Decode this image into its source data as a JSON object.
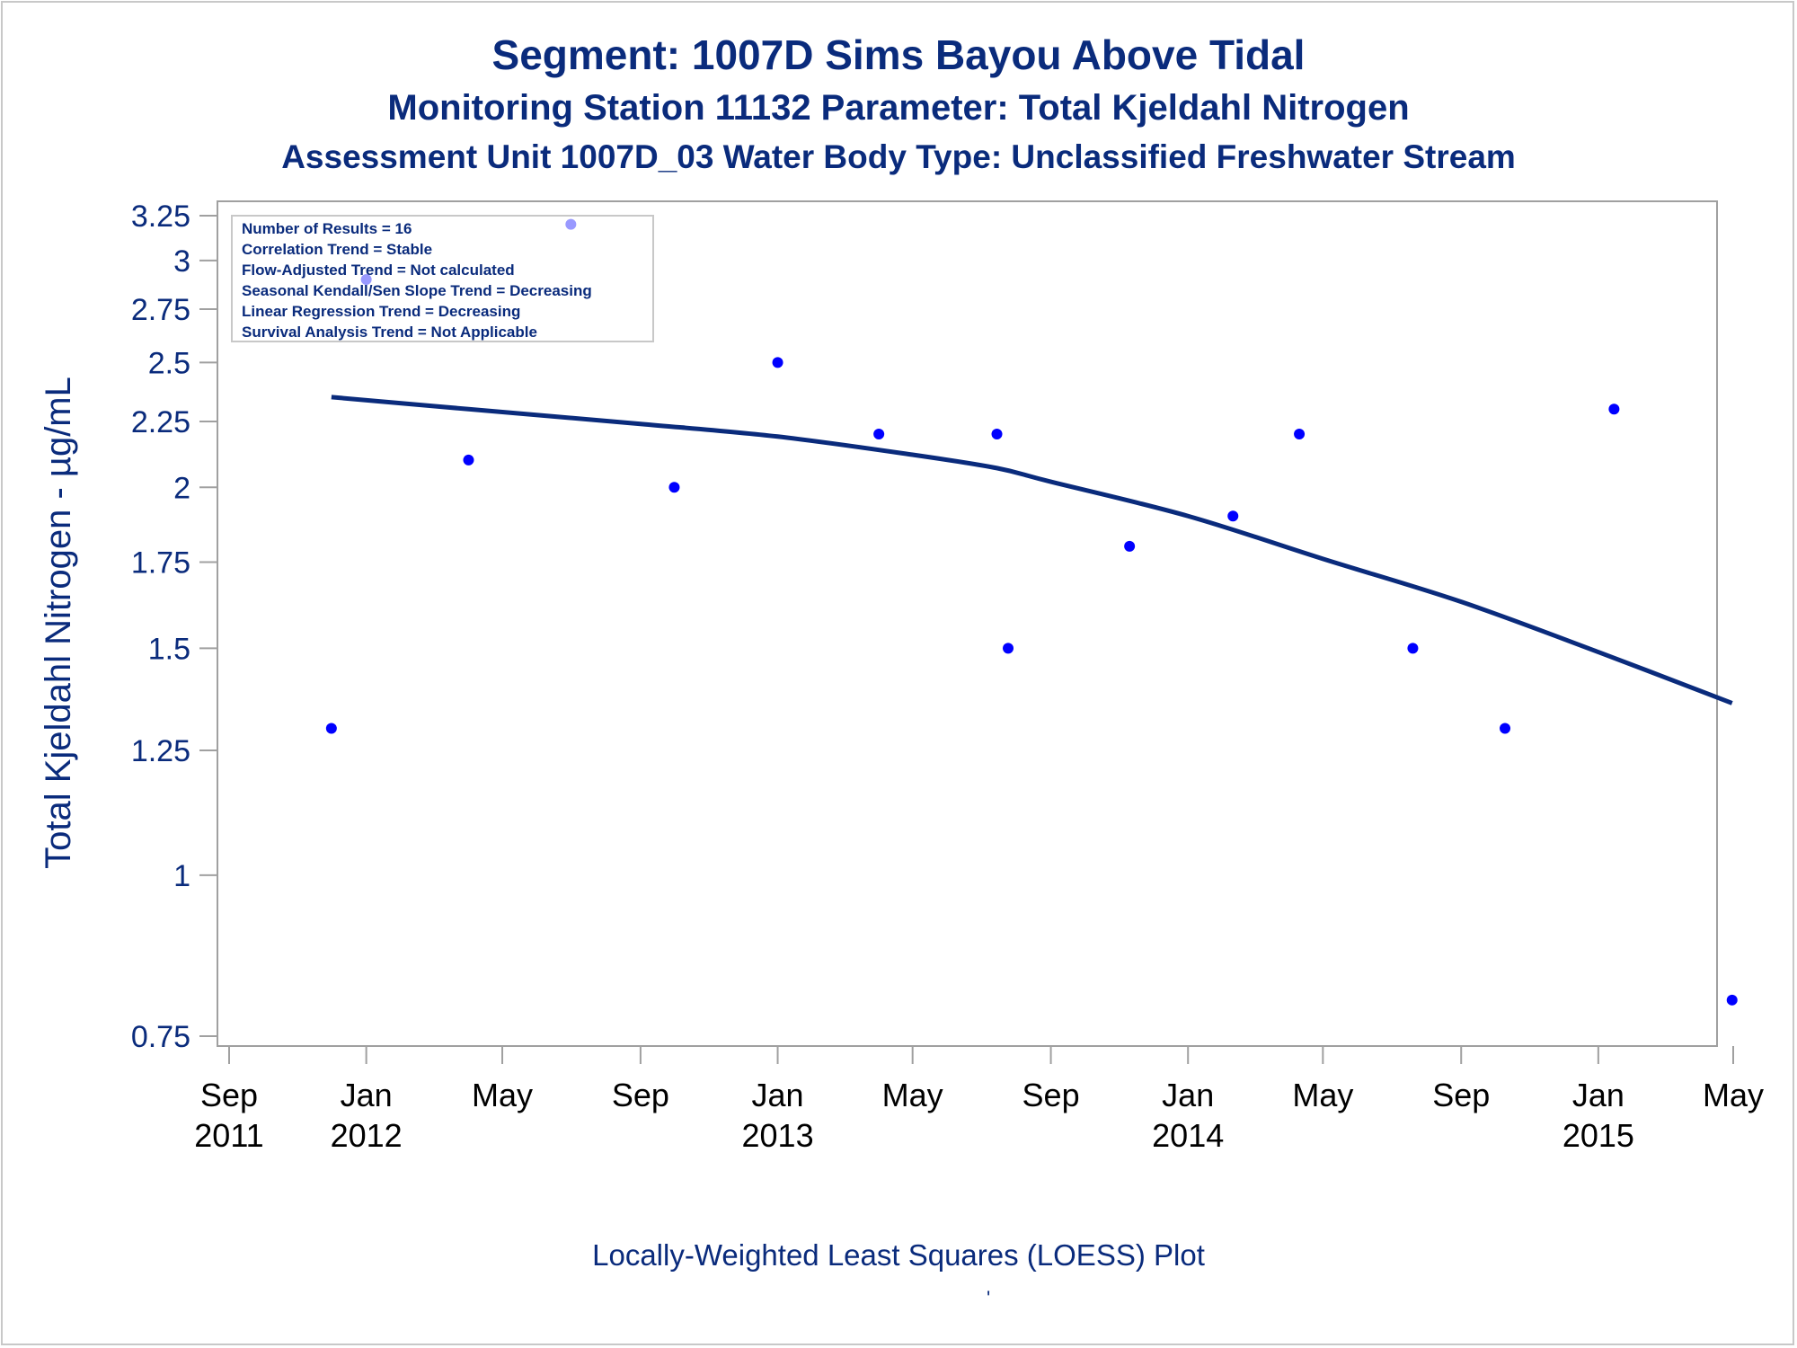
{
  "title": "Segment: 1007D  Sims Bayou Above Tidal",
  "subtitle1": "Monitoring Station 11132 Parameter: Total Kjeldahl Nitrogen",
  "subtitle2": "Assessment Unit 1007D_03   Water Body Type: Unclassified Freshwater Stream",
  "footnote": "Locally-Weighted Least Squares (LOESS) Plot",
  "footnote_mark": "'",
  "colors": {
    "text": "#0a2b7c",
    "points": "#0000ff",
    "curve": "#0a2b7c",
    "axis": "#a0a0a0"
  },
  "chart_data": {
    "type": "scatter",
    "ylabel": "Total Kjeldahl Nitrogen -  µg/mL",
    "yscale": "log",
    "ylim": [
      0.75,
      3.25
    ],
    "yticks": [
      0.75,
      1,
      1.25,
      1.5,
      1.75,
      2,
      2.25,
      2.5,
      2.75,
      3,
      3.25
    ],
    "xlim": [
      "2011-09-01",
      "2015-05-01"
    ],
    "xticks": [
      {
        "date": "2011-09-01",
        "month": "Sep",
        "year": "2011"
      },
      {
        "date": "2012-01-01",
        "month": "Jan",
        "year": "2012"
      },
      {
        "date": "2012-05-01",
        "month": "May",
        "year": ""
      },
      {
        "date": "2012-09-01",
        "month": "Sep",
        "year": ""
      },
      {
        "date": "2013-01-01",
        "month": "Jan",
        "year": "2013"
      },
      {
        "date": "2013-05-01",
        "month": "May",
        "year": ""
      },
      {
        "date": "2013-09-01",
        "month": "Sep",
        "year": ""
      },
      {
        "date": "2014-01-01",
        "month": "Jan",
        "year": "2014"
      },
      {
        "date": "2014-05-01",
        "month": "May",
        "year": ""
      },
      {
        "date": "2014-09-01",
        "month": "Sep",
        "year": ""
      },
      {
        "date": "2015-01-01",
        "month": "Jan",
        "year": "2015"
      },
      {
        "date": "2015-05-01",
        "month": "May",
        "year": ""
      }
    ],
    "grid": false,
    "points": [
      {
        "x": "2011-12-01",
        "y": 1.3
      },
      {
        "x": "2012-01-01",
        "y": 2.9
      },
      {
        "x": "2012-04-01",
        "y": 2.1
      },
      {
        "x": "2012-07-01",
        "y": 3.2
      },
      {
        "x": "2012-10-01",
        "y": 2.0
      },
      {
        "x": "2013-01-01",
        "y": 2.5
      },
      {
        "x": "2013-04-01",
        "y": 2.2
      },
      {
        "x": "2013-07-15",
        "y": 2.2
      },
      {
        "x": "2013-07-25",
        "y": 1.5
      },
      {
        "x": "2013-11-10",
        "y": 1.8
      },
      {
        "x": "2014-02-10",
        "y": 1.9
      },
      {
        "x": "2014-04-10",
        "y": 2.2
      },
      {
        "x": "2014-07-20",
        "y": 1.5
      },
      {
        "x": "2014-10-10",
        "y": 1.3
      },
      {
        "x": "2015-01-15",
        "y": 2.3
      },
      {
        "x": "2015-04-30",
        "y": 0.8
      }
    ],
    "loess_curve": [
      {
        "x": "2011-12-01",
        "y": 2.35
      },
      {
        "x": "2012-04-01",
        "y": 2.3
      },
      {
        "x": "2012-09-01",
        "y": 2.24
      },
      {
        "x": "2013-01-01",
        "y": 2.19
      },
      {
        "x": "2013-05-01",
        "y": 2.12
      },
      {
        "x": "2013-07-15",
        "y": 2.07
      },
      {
        "x": "2013-09-01",
        "y": 2.02
      },
      {
        "x": "2014-01-01",
        "y": 1.9
      },
      {
        "x": "2014-05-01",
        "y": 1.76
      },
      {
        "x": "2014-09-01",
        "y": 1.63
      },
      {
        "x": "2015-01-01",
        "y": 1.49
      },
      {
        "x": "2015-04-30",
        "y": 1.36
      }
    ],
    "inset_box": [
      "Number of Results = 16",
      "Correlation Trend = Stable",
      "Flow-Adjusted Trend = Not calculated",
      "Seasonal Kendall/Sen Slope Trend = Decreasing",
      "Linear Regression Trend = Decreasing",
      "Survival Analysis Trend = Not Applicable"
    ]
  }
}
